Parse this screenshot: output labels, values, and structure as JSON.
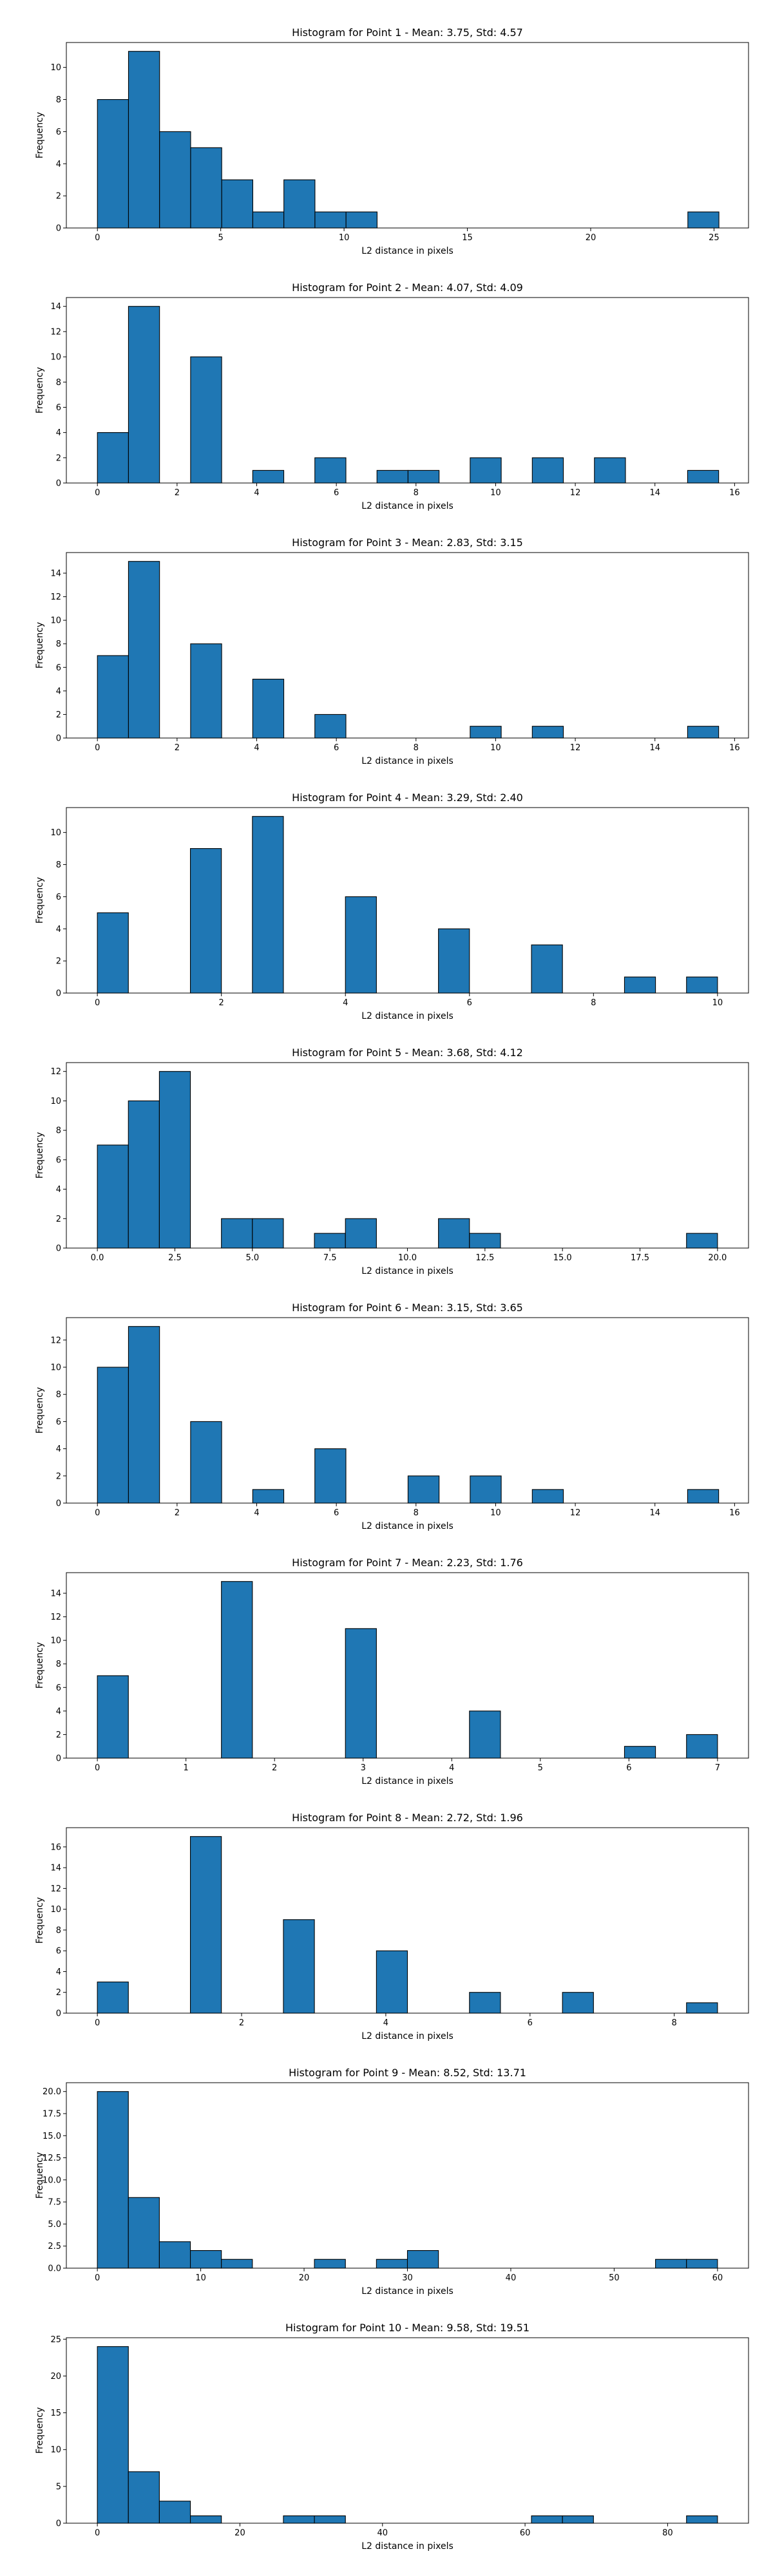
{
  "bar_color": "#1f77b4",
  "edge_color": "#000000",
  "chart_data": [
    {
      "type": "bar",
      "title": "Histogram for Point 1 - Mean: 3.75, Std: 4.57",
      "xlabel": "L2 distance in pixels",
      "ylabel": "Frequency",
      "xlim": [
        -1.26,
        26.4
      ],
      "ylim": [
        0,
        11.55
      ],
      "xticks": [
        {
          "value": 0,
          "label": "0"
        },
        {
          "value": 5,
          "label": "5"
        },
        {
          "value": 10,
          "label": "10"
        },
        {
          "value": 15,
          "label": "15"
        },
        {
          "value": 20,
          "label": "20"
        },
        {
          "value": 25,
          "label": "25"
        }
      ],
      "yticks": [
        {
          "value": 0,
          "label": "0"
        },
        {
          "value": 2,
          "label": "2"
        },
        {
          "value": 4,
          "label": "4"
        },
        {
          "value": 6,
          "label": "6"
        },
        {
          "value": 8,
          "label": "8"
        },
        {
          "value": 10,
          "label": "10"
        }
      ],
      "bin_edges": [
        0,
        1.26,
        2.52,
        3.78,
        5.04,
        6.3,
        7.56,
        8.82,
        10.08,
        11.34,
        12.6,
        13.86,
        15.12,
        16.38,
        17.64,
        18.9,
        20.16,
        21.42,
        22.68,
        23.94,
        25.2
      ],
      "counts": [
        8,
        11,
        6,
        5,
        3,
        1,
        3,
        1,
        1,
        0,
        0,
        0,
        0,
        0,
        0,
        0,
        0,
        0,
        0,
        1
      ]
    },
    {
      "type": "bar",
      "title": "Histogram for Point 2 - Mean: 4.07, Std: 4.09",
      "xlabel": "L2 distance in pixels",
      "ylabel": "Frequency",
      "xlim": [
        -0.78,
        16.35
      ],
      "ylim": [
        0,
        14.7
      ],
      "xticks": [
        {
          "value": 0,
          "label": "0"
        },
        {
          "value": 2,
          "label": "2"
        },
        {
          "value": 4,
          "label": "4"
        },
        {
          "value": 6,
          "label": "6"
        },
        {
          "value": 8,
          "label": "8"
        },
        {
          "value": 10,
          "label": "10"
        },
        {
          "value": 12,
          "label": "12"
        },
        {
          "value": 14,
          "label": "14"
        },
        {
          "value": 16,
          "label": "16"
        }
      ],
      "yticks": [
        {
          "value": 0,
          "label": "0"
        },
        {
          "value": 2,
          "label": "2"
        },
        {
          "value": 4,
          "label": "4"
        },
        {
          "value": 6,
          "label": "6"
        },
        {
          "value": 8,
          "label": "8"
        },
        {
          "value": 10,
          "label": "10"
        },
        {
          "value": 12,
          "label": "12"
        },
        {
          "value": 14,
          "label": "14"
        }
      ],
      "bin_edges": [
        0,
        0.78,
        1.56,
        2.34,
        3.12,
        3.9,
        4.68,
        5.46,
        6.24,
        7.02,
        7.8,
        8.58,
        9.36,
        10.14,
        10.92,
        11.7,
        12.48,
        13.26,
        14.04,
        14.82,
        15.6
      ],
      "counts": [
        4,
        14,
        0,
        10,
        0,
        1,
        0,
        2,
        0,
        1,
        1,
        0,
        2,
        0,
        2,
        0,
        2,
        0,
        0,
        1
      ]
    },
    {
      "type": "bar",
      "title": "Histogram for Point 3 - Mean: 2.83, Std: 3.15",
      "xlabel": "L2 distance in pixels",
      "ylabel": "Frequency",
      "xlim": [
        -0.78,
        16.35
      ],
      "ylim": [
        0,
        15.75
      ],
      "xticks": [
        {
          "value": 0,
          "label": "0"
        },
        {
          "value": 2,
          "label": "2"
        },
        {
          "value": 4,
          "label": "4"
        },
        {
          "value": 6,
          "label": "6"
        },
        {
          "value": 8,
          "label": "8"
        },
        {
          "value": 10,
          "label": "10"
        },
        {
          "value": 12,
          "label": "12"
        },
        {
          "value": 14,
          "label": "14"
        },
        {
          "value": 16,
          "label": "16"
        }
      ],
      "yticks": [
        {
          "value": 0,
          "label": "0"
        },
        {
          "value": 2,
          "label": "2"
        },
        {
          "value": 4,
          "label": "4"
        },
        {
          "value": 6,
          "label": "6"
        },
        {
          "value": 8,
          "label": "8"
        },
        {
          "value": 10,
          "label": "10"
        },
        {
          "value": 12,
          "label": "12"
        },
        {
          "value": 14,
          "label": "14"
        }
      ],
      "bin_edges": [
        0,
        0.78,
        1.56,
        2.34,
        3.12,
        3.9,
        4.68,
        5.46,
        6.24,
        7.02,
        7.8,
        8.58,
        9.36,
        10.14,
        10.92,
        11.7,
        12.48,
        13.26,
        14.04,
        14.82,
        15.6
      ],
      "counts": [
        7,
        15,
        0,
        8,
        0,
        5,
        0,
        2,
        0,
        0,
        0,
        0,
        1,
        0,
        1,
        0,
        0,
        0,
        0,
        1
      ]
    },
    {
      "type": "bar",
      "title": "Histogram for Point 4 - Mean: 3.29, Std: 2.40",
      "xlabel": "L2 distance in pixels",
      "ylabel": "Frequency",
      "xlim": [
        -0.5,
        10.5
      ],
      "ylim": [
        0,
        11.55
      ],
      "xticks": [
        {
          "value": 0,
          "label": "0"
        },
        {
          "value": 2,
          "label": "2"
        },
        {
          "value": 4,
          "label": "4"
        },
        {
          "value": 6,
          "label": "6"
        },
        {
          "value": 8,
          "label": "8"
        },
        {
          "value": 10,
          "label": "10"
        }
      ],
      "yticks": [
        {
          "value": 0,
          "label": "0"
        },
        {
          "value": 2,
          "label": "2"
        },
        {
          "value": 4,
          "label": "4"
        },
        {
          "value": 6,
          "label": "6"
        },
        {
          "value": 8,
          "label": "8"
        },
        {
          "value": 10,
          "label": "10"
        }
      ],
      "bin_edges": [
        0,
        0.5,
        1,
        1.5,
        2,
        2.5,
        3,
        3.5,
        4,
        4.5,
        5,
        5.5,
        6,
        6.5,
        7,
        7.5,
        8,
        8.5,
        9,
        9.5,
        10
      ],
      "counts": [
        5,
        0,
        0,
        9,
        0,
        11,
        0,
        0,
        6,
        0,
        0,
        4,
        0,
        0,
        3,
        0,
        0,
        1,
        0,
        1
      ]
    },
    {
      "type": "bar",
      "title": "Histogram for Point 5 - Mean: 3.68, Std: 4.12",
      "xlabel": "L2 distance in pixels",
      "ylabel": "Frequency",
      "xlim": [
        -1.0,
        21.0
      ],
      "ylim": [
        0,
        12.6
      ],
      "xticks": [
        {
          "value": 0,
          "label": "0.0"
        },
        {
          "value": 2.5,
          "label": "2.5"
        },
        {
          "value": 5,
          "label": "5.0"
        },
        {
          "value": 7.5,
          "label": "7.5"
        },
        {
          "value": 10,
          "label": "10.0"
        },
        {
          "value": 12.5,
          "label": "12.5"
        },
        {
          "value": 15,
          "label": "15.0"
        },
        {
          "value": 17.5,
          "label": "17.5"
        },
        {
          "value": 20,
          "label": "20.0"
        }
      ],
      "yticks": [
        {
          "value": 0,
          "label": "0"
        },
        {
          "value": 2,
          "label": "2"
        },
        {
          "value": 4,
          "label": "4"
        },
        {
          "value": 6,
          "label": "6"
        },
        {
          "value": 8,
          "label": "8"
        },
        {
          "value": 10,
          "label": "10"
        },
        {
          "value": 12,
          "label": "12"
        }
      ],
      "bin_edges": [
        0,
        1,
        2,
        3,
        4,
        5,
        6,
        7,
        8,
        9,
        10,
        11,
        12,
        13,
        14,
        15,
        16,
        17,
        18,
        19,
        20
      ],
      "counts": [
        7,
        10,
        12,
        0,
        2,
        2,
        0,
        1,
        2,
        0,
        0,
        2,
        1,
        0,
        0,
        0,
        0,
        0,
        0,
        1
      ]
    },
    {
      "type": "bar",
      "title": "Histogram for Point 6 - Mean: 3.15, Std: 3.65",
      "xlabel": "L2 distance in pixels",
      "ylabel": "Frequency",
      "xlim": [
        -0.78,
        16.35
      ],
      "ylim": [
        0,
        13.65
      ],
      "xticks": [
        {
          "value": 0,
          "label": "0"
        },
        {
          "value": 2,
          "label": "2"
        },
        {
          "value": 4,
          "label": "4"
        },
        {
          "value": 6,
          "label": "6"
        },
        {
          "value": 8,
          "label": "8"
        },
        {
          "value": 10,
          "label": "10"
        },
        {
          "value": 12,
          "label": "12"
        },
        {
          "value": 14,
          "label": "14"
        },
        {
          "value": 16,
          "label": "16"
        }
      ],
      "yticks": [
        {
          "value": 0,
          "label": "0"
        },
        {
          "value": 2,
          "label": "2"
        },
        {
          "value": 4,
          "label": "4"
        },
        {
          "value": 6,
          "label": "6"
        },
        {
          "value": 8,
          "label": "8"
        },
        {
          "value": 10,
          "label": "10"
        },
        {
          "value": 12,
          "label": "12"
        }
      ],
      "bin_edges": [
        0,
        0.78,
        1.56,
        2.34,
        3.12,
        3.9,
        4.68,
        5.46,
        6.24,
        7.02,
        7.8,
        8.58,
        9.36,
        10.14,
        10.92,
        11.7,
        12.48,
        13.26,
        14.04,
        14.82,
        15.6
      ],
      "counts": [
        10,
        13,
        0,
        6,
        0,
        1,
        0,
        4,
        0,
        0,
        2,
        0,
        2,
        0,
        1,
        0,
        0,
        0,
        0,
        1
      ]
    },
    {
      "type": "bar",
      "title": "Histogram for Point 7 - Mean: 2.23, Std: 1.76",
      "xlabel": "L2 distance in pixels",
      "ylabel": "Frequency",
      "xlim": [
        -0.35,
        7.35
      ],
      "ylim": [
        0,
        15.75
      ],
      "xticks": [
        {
          "value": 0,
          "label": "0"
        },
        {
          "value": 1,
          "label": "1"
        },
        {
          "value": 2,
          "label": "2"
        },
        {
          "value": 3,
          "label": "3"
        },
        {
          "value": 4,
          "label": "4"
        },
        {
          "value": 5,
          "label": "5"
        },
        {
          "value": 6,
          "label": "6"
        },
        {
          "value": 7,
          "label": "7"
        }
      ],
      "yticks": [
        {
          "value": 0,
          "label": "0"
        },
        {
          "value": 2,
          "label": "2"
        },
        {
          "value": 4,
          "label": "4"
        },
        {
          "value": 6,
          "label": "6"
        },
        {
          "value": 8,
          "label": "8"
        },
        {
          "value": 10,
          "label": "10"
        },
        {
          "value": 12,
          "label": "12"
        },
        {
          "value": 14,
          "label": "14"
        }
      ],
      "bin_edges": [
        0,
        0.35,
        0.7,
        1.05,
        1.4,
        1.75,
        2.1,
        2.45,
        2.8,
        3.15,
        3.5,
        3.85,
        4.2,
        4.55,
        4.9,
        5.25,
        5.6,
        5.95,
        6.3,
        6.65,
        7.0
      ],
      "counts": [
        7,
        0,
        0,
        0,
        15,
        0,
        0,
        0,
        11,
        0,
        0,
        0,
        4,
        0,
        0,
        0,
        0,
        1,
        0,
        2
      ]
    },
    {
      "type": "bar",
      "title": "Histogram for Point 8 - Mean: 2.72, Std: 1.96",
      "xlabel": "L2 distance in pixels",
      "ylabel": "Frequency",
      "xlim": [
        -0.43,
        9.03
      ],
      "ylim": [
        0,
        17.85
      ],
      "xticks": [
        {
          "value": 0,
          "label": "0"
        },
        {
          "value": 2,
          "label": "2"
        },
        {
          "value": 4,
          "label": "4"
        },
        {
          "value": 6,
          "label": "6"
        },
        {
          "value": 8,
          "label": "8"
        }
      ],
      "yticks": [
        {
          "value": 0,
          "label": "0"
        },
        {
          "value": 2,
          "label": "2"
        },
        {
          "value": 4,
          "label": "4"
        },
        {
          "value": 6,
          "label": "6"
        },
        {
          "value": 8,
          "label": "8"
        },
        {
          "value": 10,
          "label": "10"
        },
        {
          "value": 12,
          "label": "12"
        },
        {
          "value": 14,
          "label": "14"
        },
        {
          "value": 16,
          "label": "16"
        }
      ],
      "bin_edges": [
        0,
        0.43,
        0.86,
        1.29,
        1.72,
        2.15,
        2.58,
        3.01,
        3.44,
        3.87,
        4.3,
        4.73,
        5.16,
        5.59,
        6.02,
        6.45,
        6.88,
        7.31,
        7.74,
        8.17,
        8.6
      ],
      "counts": [
        3,
        0,
        0,
        17,
        0,
        0,
        9,
        0,
        0,
        6,
        0,
        0,
        2,
        0,
        0,
        2,
        0,
        0,
        0,
        1
      ]
    },
    {
      "type": "bar",
      "title": "Histogram for Point 9 - Mean: 8.52, Std: 13.71",
      "xlabel": "L2 distance in pixels",
      "ylabel": "Frequency",
      "xlim": [
        -3.0,
        63.0
      ],
      "ylim": [
        0,
        21.0
      ],
      "xticks": [
        {
          "value": 0,
          "label": "0"
        },
        {
          "value": 10,
          "label": "10"
        },
        {
          "value": 20,
          "label": "20"
        },
        {
          "value": 30,
          "label": "30"
        },
        {
          "value": 40,
          "label": "40"
        },
        {
          "value": 50,
          "label": "50"
        },
        {
          "value": 60,
          "label": "60"
        }
      ],
      "yticks": [
        {
          "value": 0,
          "label": "0.0"
        },
        {
          "value": 2.5,
          "label": "2.5"
        },
        {
          "value": 5,
          "label": "5.0"
        },
        {
          "value": 7.5,
          "label": "7.5"
        },
        {
          "value": 10,
          "label": "10.0"
        },
        {
          "value": 12.5,
          "label": "12.5"
        },
        {
          "value": 15,
          "label": "15.0"
        },
        {
          "value": 17.5,
          "label": "17.5"
        },
        {
          "value": 20,
          "label": "20.0"
        }
      ],
      "bin_edges": [
        0,
        3,
        6,
        9,
        12,
        15,
        18,
        21,
        24,
        27,
        30,
        33,
        36,
        39,
        42,
        45,
        48,
        51,
        54,
        57,
        60
      ],
      "counts": [
        20,
        8,
        3,
        2,
        1,
        0,
        0,
        1,
        0,
        1,
        2,
        0,
        0,
        0,
        0,
        0,
        0,
        0,
        1,
        1
      ]
    },
    {
      "type": "bar",
      "title": "Histogram for Point 10 - Mean: 9.58, Std: 19.51",
      "xlabel": "L2 distance in pixels",
      "ylabel": "Frequency",
      "xlim": [
        -4.35,
        91.35
      ],
      "ylim": [
        0,
        25.2
      ],
      "xticks": [
        {
          "value": 0,
          "label": "0"
        },
        {
          "value": 20,
          "label": "20"
        },
        {
          "value": 40,
          "label": "40"
        },
        {
          "value": 60,
          "label": "60"
        },
        {
          "value": 80,
          "label": "80"
        }
      ],
      "yticks": [
        {
          "value": 0,
          "label": "0"
        },
        {
          "value": 5,
          "label": "5"
        },
        {
          "value": 10,
          "label": "10"
        },
        {
          "value": 15,
          "label": "15"
        },
        {
          "value": 20,
          "label": "20"
        },
        {
          "value": 25,
          "label": "25"
        }
      ],
      "bin_edges": [
        0,
        4.35,
        8.7,
        13.05,
        17.4,
        21.75,
        26.1,
        30.45,
        34.8,
        39.15,
        43.5,
        47.85,
        52.2,
        56.55,
        60.9,
        65.25,
        69.6,
        73.95,
        78.3,
        82.65,
        87.0
      ],
      "counts": [
        24,
        7,
        3,
        1,
        0,
        0,
        1,
        1,
        0,
        0,
        0,
        0,
        0,
        0,
        1,
        1,
        0,
        0,
        0,
        1
      ]
    }
  ]
}
